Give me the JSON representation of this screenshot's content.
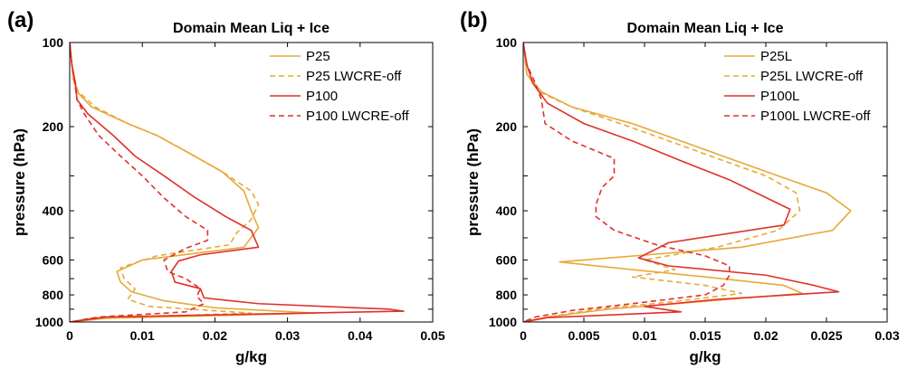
{
  "chart_data": [
    {
      "type": "line",
      "panel_label": "(a)",
      "title": "Domain Mean Liq + Ice",
      "xlabel": "g/kg",
      "ylabel": "pressure (hPa)",
      "xlim": [
        0,
        0.05
      ],
      "ylim": [
        100,
        1000
      ],
      "yscale": "log",
      "y_inverted": true,
      "xticks": [
        0,
        0.01,
        0.02,
        0.03,
        0.04,
        0.05
      ],
      "xtick_labels": [
        "0",
        "0.01",
        "0.02",
        "0.03",
        "0.04",
        "0.05"
      ],
      "yticks": [
        100,
        200,
        400,
        600,
        800,
        1000
      ],
      "ytick_labels": [
        "100",
        "200",
        "400",
        "600",
        "800",
        "1000"
      ],
      "grid": false,
      "legend_position": "top-right",
      "series": [
        {
          "name": "P25",
          "color": "#E8A838",
          "dash": "solid",
          "points": [
            [
              0,
              100
            ],
            [
              0.0005,
              135
            ],
            [
              0.001,
              150
            ],
            [
              0.003,
              170
            ],
            [
              0.008,
              195
            ],
            [
              0.012,
              215
            ],
            [
              0.016,
              245
            ],
            [
              0.021,
              290
            ],
            [
              0.024,
              340
            ],
            [
              0.025,
              400
            ],
            [
              0.026,
              460
            ],
            [
              0.024,
              540
            ],
            [
              0.01,
              600
            ],
            [
              0.0065,
              660
            ],
            [
              0.007,
              720
            ],
            [
              0.0085,
              780
            ],
            [
              0.013,
              840
            ],
            [
              0.02,
              890
            ],
            [
              0.034,
              930
            ],
            [
              0.005,
              970
            ],
            [
              0,
              1000
            ]
          ]
        },
        {
          "name": "P25 LWCRE-off",
          "color": "#E8A838",
          "dash": "dashed",
          "points": [
            [
              0,
              100
            ],
            [
              0.0005,
              135
            ],
            [
              0.0012,
              150
            ],
            [
              0.0035,
              170
            ],
            [
              0.008,
              195
            ],
            [
              0.012,
              215
            ],
            [
              0.016,
              245
            ],
            [
              0.021,
              290
            ],
            [
              0.025,
              340
            ],
            [
              0.026,
              380
            ],
            [
              0.025,
              430
            ],
            [
              0.023,
              480
            ],
            [
              0.022,
              530
            ],
            [
              0.012,
              580
            ],
            [
              0.007,
              640
            ],
            [
              0.0075,
              700
            ],
            [
              0.009,
              760
            ],
            [
              0.008,
              830
            ],
            [
              0.011,
              880
            ],
            [
              0.025,
              930
            ],
            [
              0.003,
              970
            ],
            [
              0,
              1000
            ]
          ]
        },
        {
          "name": "P100",
          "color": "#E0302A",
          "dash": "solid",
          "points": [
            [
              0,
              100
            ],
            [
              0.0003,
              120
            ],
            [
              0.0008,
              140
            ],
            [
              0.001,
              160
            ],
            [
              0.0025,
              180
            ],
            [
              0.006,
              215
            ],
            [
              0.009,
              255
            ],
            [
              0.013,
              300
            ],
            [
              0.017,
              355
            ],
            [
              0.0215,
              420
            ],
            [
              0.025,
              470
            ],
            [
              0.026,
              540
            ],
            [
              0.018,
              575
            ],
            [
              0.015,
              605
            ],
            [
              0.014,
              660
            ],
            [
              0.0145,
              720
            ],
            [
              0.018,
              760
            ],
            [
              0.0185,
              820
            ],
            [
              0.026,
              860
            ],
            [
              0.044,
              900
            ],
            [
              0.046,
              915
            ],
            [
              0.005,
              960
            ],
            [
              0,
              1000
            ]
          ]
        },
        {
          "name": "P100 LWCRE-off",
          "color": "#E0302A",
          "dash": "dashed",
          "points": [
            [
              0,
              100
            ],
            [
              0.0003,
              120
            ],
            [
              0.0007,
              140
            ],
            [
              0.001,
              160
            ],
            [
              0.002,
              180
            ],
            [
              0.004,
              215
            ],
            [
              0.007,
              255
            ],
            [
              0.01,
              300
            ],
            [
              0.013,
              360
            ],
            [
              0.016,
              420
            ],
            [
              0.019,
              470
            ],
            [
              0.019,
              510
            ],
            [
              0.016,
              545
            ],
            [
              0.013,
              600
            ],
            [
              0.0135,
              660
            ],
            [
              0.016,
              700
            ],
            [
              0.018,
              760
            ],
            [
              0.0175,
              810
            ],
            [
              0.0185,
              860
            ],
            [
              0.016,
              920
            ],
            [
              0.004,
              960
            ],
            [
              0,
              1000
            ]
          ]
        }
      ]
    },
    {
      "type": "line",
      "panel_label": "(b)",
      "title": "Domain Mean Liq + Ice",
      "xlabel": "g/kg",
      "ylabel": "pressure (hPa)",
      "xlim": [
        0,
        0.03
      ],
      "ylim": [
        100,
        1000
      ],
      "yscale": "log",
      "y_inverted": true,
      "xticks": [
        0,
        0.005,
        0.01,
        0.015,
        0.02,
        0.025,
        0.03
      ],
      "xtick_labels": [
        "0",
        "0.005",
        "0.01",
        "0.015",
        "0.02",
        "0.025",
        "0.03"
      ],
      "yticks": [
        100,
        200,
        400,
        600,
        800,
        1000
      ],
      "ytick_labels": [
        "100",
        "200",
        "400",
        "600",
        "800",
        "1000"
      ],
      "grid": false,
      "legend_position": "top-right",
      "series": [
        {
          "name": "P25L",
          "color": "#E8A838",
          "dash": "solid",
          "points": [
            [
              0,
              100
            ],
            [
              0.0003,
              130
            ],
            [
              0.0015,
              150
            ],
            [
              0.004,
              170
            ],
            [
              0.009,
              195
            ],
            [
              0.013,
              225
            ],
            [
              0.017,
              260
            ],
            [
              0.021,
              300
            ],
            [
              0.025,
              345
            ],
            [
              0.027,
              400
            ],
            [
              0.0255,
              470
            ],
            [
              0.018,
              540
            ],
            [
              0.003,
              610
            ],
            [
              0.009,
              650
            ],
            [
              0.015,
              690
            ],
            [
              0.0215,
              740
            ],
            [
              0.023,
              790
            ],
            [
              0.014,
              850
            ],
            [
              0.007,
              900
            ],
            [
              0.002,
              960
            ],
            [
              0,
              1000
            ]
          ]
        },
        {
          "name": "P25L LWCRE-off",
          "color": "#E8A838",
          "dash": "dashed",
          "points": [
            [
              0,
              100
            ],
            [
              0.0003,
              130
            ],
            [
              0.0013,
              150
            ],
            [
              0.004,
              170
            ],
            [
              0.008,
              195
            ],
            [
              0.012,
              225
            ],
            [
              0.016,
              260
            ],
            [
              0.02,
              300
            ],
            [
              0.0225,
              345
            ],
            [
              0.0228,
              400
            ],
            [
              0.021,
              470
            ],
            [
              0.016,
              540
            ],
            [
              0.01,
              600
            ],
            [
              0.0125,
              650
            ],
            [
              0.009,
              690
            ],
            [
              0.015,
              740
            ],
            [
              0.018,
              790
            ],
            [
              0.012,
              850
            ],
            [
              0.006,
              900
            ],
            [
              0.002,
              960
            ],
            [
              0,
              1000
            ]
          ]
        },
        {
          "name": "P100L",
          "color": "#E0302A",
          "dash": "solid",
          "points": [
            [
              0,
              100
            ],
            [
              0.0003,
              120
            ],
            [
              0.0008,
              140
            ],
            [
              0.002,
              165
            ],
            [
              0.005,
              195
            ],
            [
              0.009,
              225
            ],
            [
              0.013,
              265
            ],
            [
              0.017,
              310
            ],
            [
              0.0195,
              350
            ],
            [
              0.022,
              395
            ],
            [
              0.0215,
              450
            ],
            [
              0.012,
              520
            ],
            [
              0.0095,
              590
            ],
            [
              0.012,
              630
            ],
            [
              0.02,
              680
            ],
            [
              0.024,
              740
            ],
            [
              0.026,
              780
            ],
            [
              0.016,
              830
            ],
            [
              0.01,
              880
            ],
            [
              0.013,
              920
            ],
            [
              0.002,
              965
            ],
            [
              0,
              1000
            ]
          ]
        },
        {
          "name": "P100L LWCRE-off",
          "color": "#E0302A",
          "dash": "dashed",
          "points": [
            [
              0,
              100
            ],
            [
              0.0003,
              120
            ],
            [
              0.001,
              140
            ],
            [
              0.0015,
              160
            ],
            [
              0.0018,
              195
            ],
            [
              0.004,
              225
            ],
            [
              0.0075,
              260
            ],
            [
              0.0075,
              300
            ],
            [
              0.0065,
              330
            ],
            [
              0.006,
              380
            ],
            [
              0.006,
              420
            ],
            [
              0.0075,
              470
            ],
            [
              0.011,
              530
            ],
            [
              0.015,
              580
            ],
            [
              0.017,
              630
            ],
            [
              0.017,
              680
            ],
            [
              0.0165,
              740
            ],
            [
              0.015,
              800
            ],
            [
              0.009,
              860
            ],
            [
              0.004,
              910
            ],
            [
              0.001,
              960
            ],
            [
              0,
              1000
            ]
          ]
        }
      ]
    }
  ]
}
